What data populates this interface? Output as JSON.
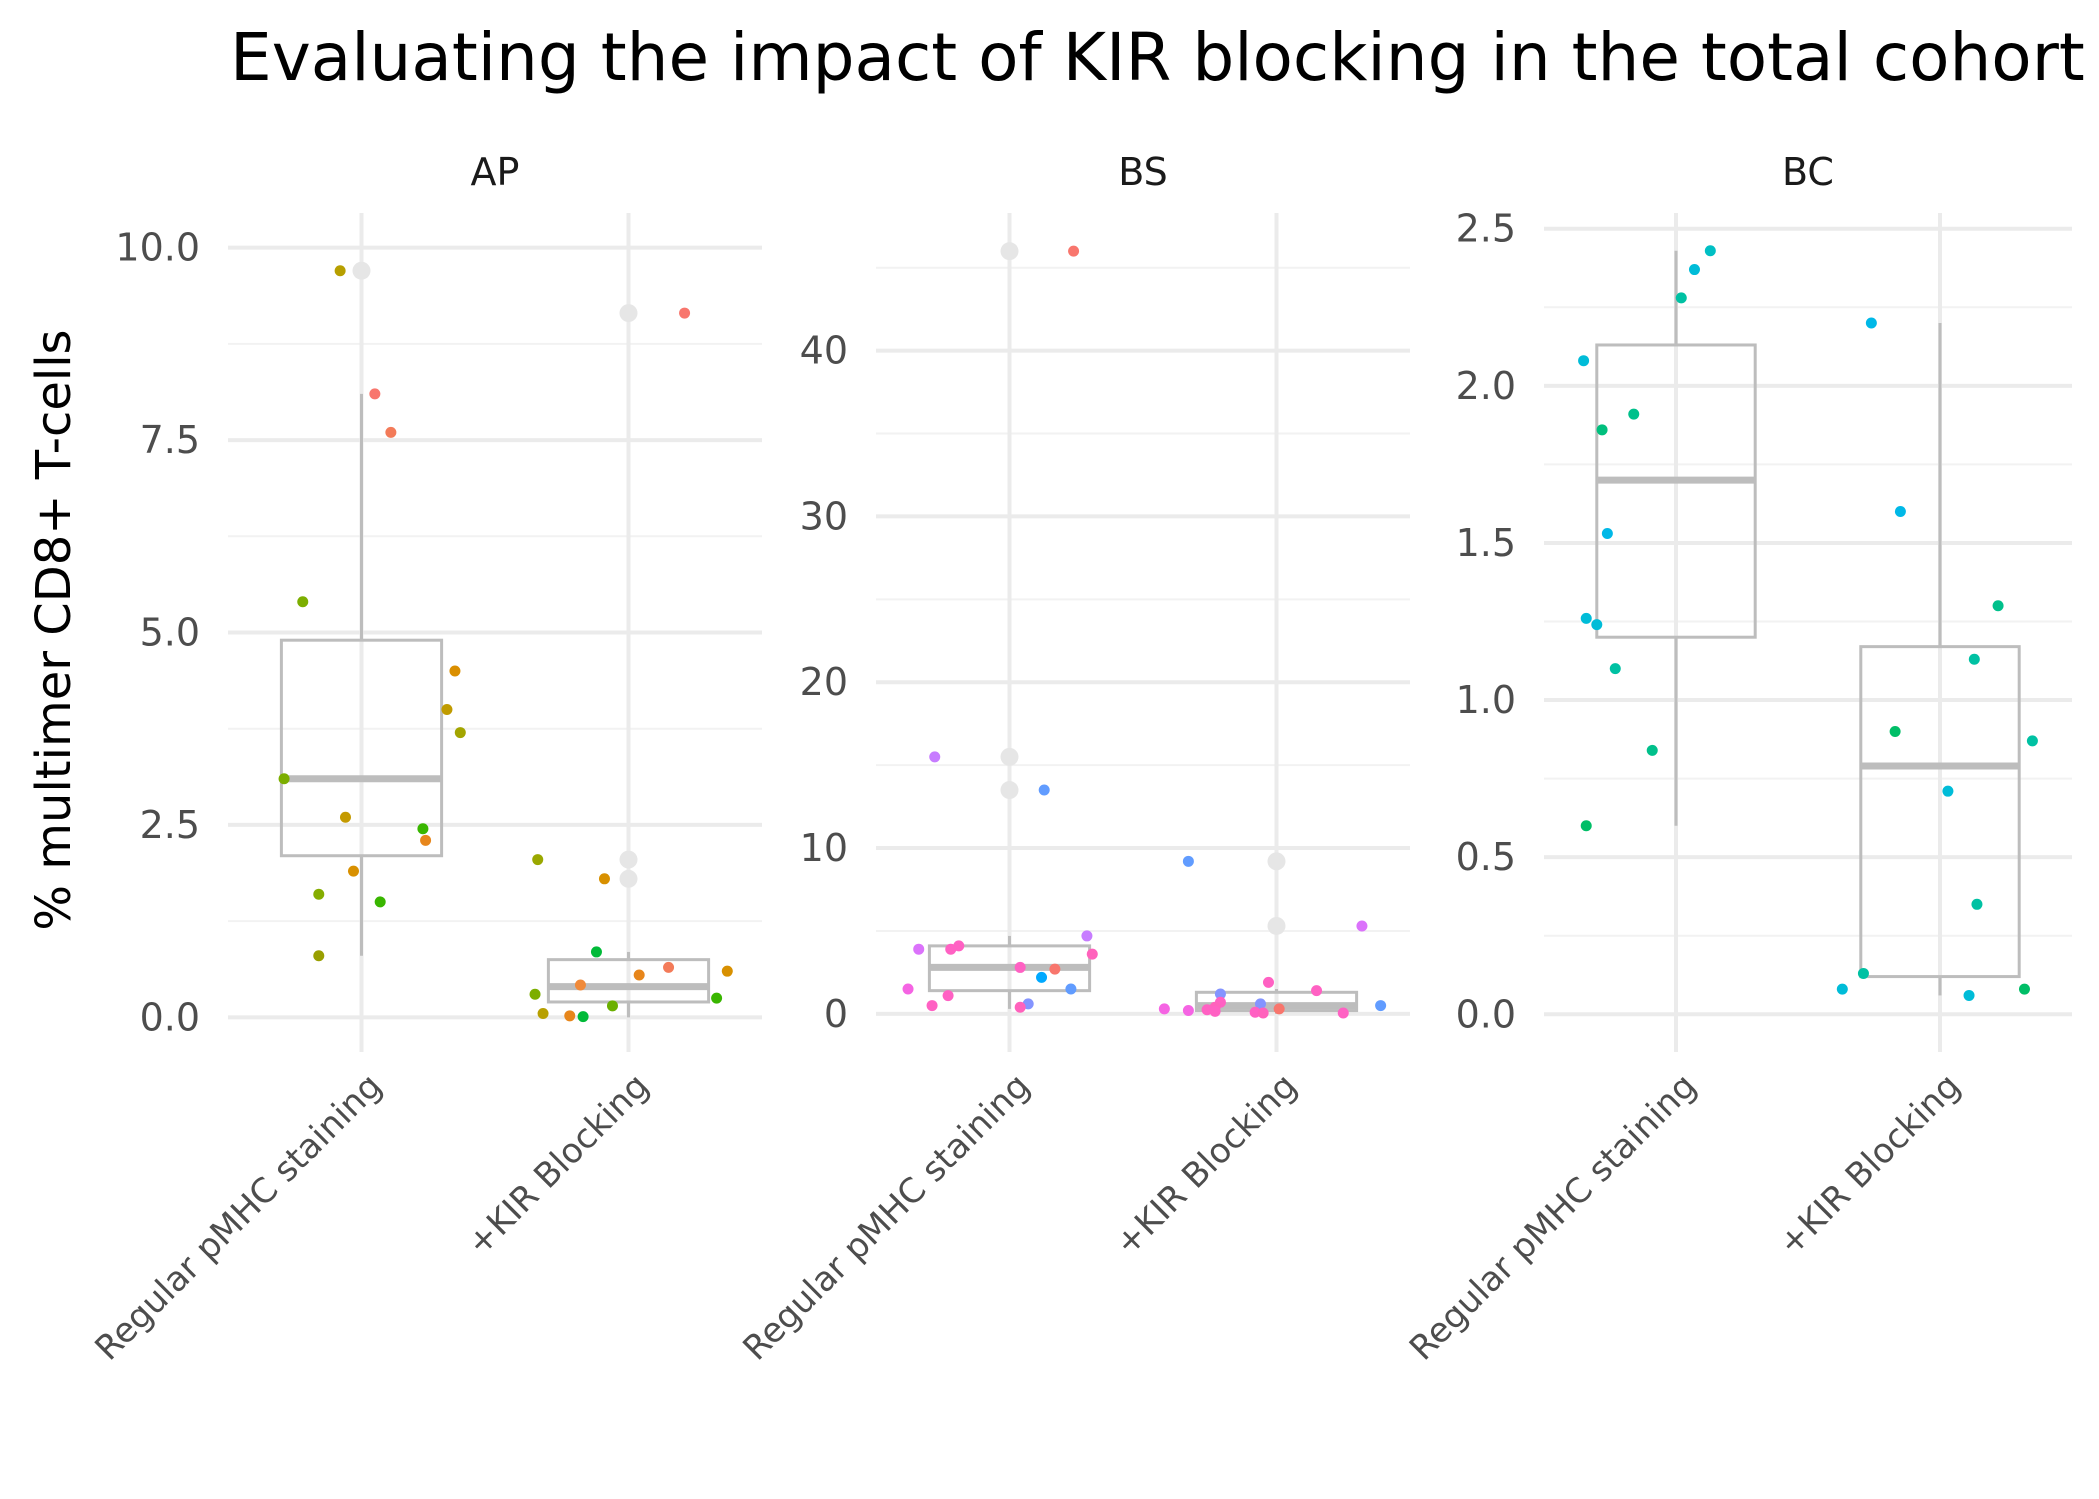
{
  "chart_data": {
    "type": "box",
    "title": "Evaluating the impact of KIR blocking in the total cohort",
    "ylabel": "% multimer CD8+ T-cells",
    "xlabel": "",
    "categories": [
      "Regular pMHC staining",
      "+KIR Blocking"
    ],
    "legend": "none",
    "grid": true,
    "panels": [
      {
        "name": "AP",
        "ylim": [
          -0.45,
          10.45
        ],
        "yticks": [
          0,
          2.5,
          5,
          7.5,
          10
        ],
        "tick_labels": [
          "0.0",
          "2.5",
          "5.0",
          "7.5",
          "10.0"
        ],
        "boxes": [
          {
            "q1": 2.1,
            "median": 3.1,
            "q3": 4.9,
            "whisker_low": 0.8,
            "whisker_high": 8.1,
            "outliers": [
              9.7
            ]
          },
          {
            "q1": 0.2,
            "median": 0.4,
            "q3": 0.75,
            "whisker_low": 0.0,
            "whisker_high": 0.85,
            "outliers": [
              9.15,
              2.05,
              1.8
            ]
          }
        ],
        "points": [
          {
            "group": 0,
            "offset": -0.08,
            "y": 9.7,
            "color": "#b79f00"
          },
          {
            "group": 0,
            "offset": 0.05,
            "y": 8.1,
            "color": "#f8766d"
          },
          {
            "group": 0,
            "offset": 0.11,
            "y": 7.6,
            "color": "#f37b59"
          },
          {
            "group": 0,
            "offset": -0.22,
            "y": 5.4,
            "color": "#7cae00"
          },
          {
            "group": 0,
            "offset": 0.35,
            "y": 4.5,
            "color": "#da8f00"
          },
          {
            "group": 0,
            "offset": 0.32,
            "y": 4.0,
            "color": "#c09b00"
          },
          {
            "group": 0,
            "offset": 0.37,
            "y": 3.7,
            "color": "#a3a500"
          },
          {
            "group": 0,
            "offset": -0.29,
            "y": 3.1,
            "color": "#7cae00"
          },
          {
            "group": 0,
            "offset": -0.06,
            "y": 2.6,
            "color": "#c49a00"
          },
          {
            "group": 0,
            "offset": 0.23,
            "y": 2.45,
            "color": "#39b600"
          },
          {
            "group": 0,
            "offset": 0.24,
            "y": 2.3,
            "color": "#e7861b"
          },
          {
            "group": 0,
            "offset": -0.03,
            "y": 1.9,
            "color": "#d89000"
          },
          {
            "group": 0,
            "offset": -0.16,
            "y": 1.6,
            "color": "#85ad00"
          },
          {
            "group": 0,
            "offset": 0.07,
            "y": 1.5,
            "color": "#39b600"
          },
          {
            "group": 0,
            "offset": -0.16,
            "y": 0.8,
            "color": "#999f00"
          },
          {
            "group": 1,
            "offset": 0.21,
            "y": 9.15,
            "color": "#f8766d"
          },
          {
            "group": 1,
            "offset": -0.34,
            "y": 2.05,
            "color": "#9aa800"
          },
          {
            "group": 1,
            "offset": -0.09,
            "y": 1.8,
            "color": "#d89000"
          },
          {
            "group": 1,
            "offset": -0.12,
            "y": 0.85,
            "color": "#00ba38"
          },
          {
            "group": 1,
            "offset": 0.15,
            "y": 0.65,
            "color": "#f37b59"
          },
          {
            "group": 1,
            "offset": 0.37,
            "y": 0.6,
            "color": "#d89000"
          },
          {
            "group": 1,
            "offset": 0.04,
            "y": 0.55,
            "color": "#e7861b"
          },
          {
            "group": 1,
            "offset": -0.18,
            "y": 0.42,
            "color": "#f08a3a"
          },
          {
            "group": 1,
            "offset": -0.35,
            "y": 0.3,
            "color": "#7cae00"
          },
          {
            "group": 1,
            "offset": 0.33,
            "y": 0.25,
            "color": "#39b600"
          },
          {
            "group": 1,
            "offset": -0.06,
            "y": 0.15,
            "color": "#6aaf00"
          },
          {
            "group": 1,
            "offset": -0.32,
            "y": 0.05,
            "color": "#b79f00"
          },
          {
            "group": 1,
            "offset": -0.22,
            "y": 0.02,
            "color": "#e7861b"
          },
          {
            "group": 1,
            "offset": -0.17,
            "y": 0.01,
            "color": "#00ba38"
          }
        ]
      },
      {
        "name": "BS",
        "ylim": [
          -2.3,
          48.3
        ],
        "yticks": [
          0,
          10,
          20,
          30,
          40
        ],
        "tick_labels": [
          "0",
          "10",
          "20",
          "30",
          "40"
        ],
        "boxes": [
          {
            "q1": 1.4,
            "median": 2.8,
            "q3": 4.1,
            "whisker_low": 0.3,
            "whisker_high": 4.7,
            "outliers": [
              46,
              15.5,
              13.5
            ]
          },
          {
            "q1": 0.2,
            "median": 0.5,
            "q3": 1.3,
            "whisker_low": 0.0,
            "whisker_high": 1.5,
            "outliers": [
              9.2,
              5.3
            ]
          }
        ],
        "points": [
          {
            "group": 0,
            "offset": 0.24,
            "y": 46,
            "color": "#f8766d"
          },
          {
            "group": 0,
            "offset": -0.28,
            "y": 15.5,
            "color": "#c77cff"
          },
          {
            "group": 0,
            "offset": 0.13,
            "y": 13.5,
            "color": "#619cff"
          },
          {
            "group": 0,
            "offset": 0.29,
            "y": 4.7,
            "color": "#c77cff"
          },
          {
            "group": 0,
            "offset": -0.19,
            "y": 4.1,
            "color": "#ff61c3"
          },
          {
            "group": 0,
            "offset": -0.22,
            "y": 3.9,
            "color": "#ff61c3"
          },
          {
            "group": 0,
            "offset": -0.34,
            "y": 3.9,
            "color": "#db72fb"
          },
          {
            "group": 0,
            "offset": 0.31,
            "y": 3.6,
            "color": "#ff62bc"
          },
          {
            "group": 0,
            "offset": 0.04,
            "y": 2.8,
            "color": "#ff61c3"
          },
          {
            "group": 0,
            "offset": 0.17,
            "y": 2.7,
            "color": "#f8766d"
          },
          {
            "group": 0,
            "offset": 0.12,
            "y": 2.2,
            "color": "#00a9ff"
          },
          {
            "group": 0,
            "offset": -0.38,
            "y": 1.5,
            "color": "#f564e3"
          },
          {
            "group": 0,
            "offset": 0.23,
            "y": 1.5,
            "color": "#619cff"
          },
          {
            "group": 0,
            "offset": -0.23,
            "y": 1.1,
            "color": "#ff61c3"
          },
          {
            "group": 0,
            "offset": -0.29,
            "y": 0.5,
            "color": "#ff61c3"
          },
          {
            "group": 0,
            "offset": 0.07,
            "y": 0.6,
            "color": "#8494ff"
          },
          {
            "group": 0,
            "offset": 0.04,
            "y": 0.4,
            "color": "#ff62bc"
          },
          {
            "group": 1,
            "offset": -0.33,
            "y": 9.2,
            "color": "#619cff"
          },
          {
            "group": 1,
            "offset": 0.32,
            "y": 5.3,
            "color": "#db72fb"
          },
          {
            "group": 1,
            "offset": -0.03,
            "y": 1.9,
            "color": "#ff61c3"
          },
          {
            "group": 1,
            "offset": 0.15,
            "y": 1.4,
            "color": "#ff61c3"
          },
          {
            "group": 1,
            "offset": -0.21,
            "y": 1.2,
            "color": "#8494ff"
          },
          {
            "group": 1,
            "offset": -0.21,
            "y": 0.7,
            "color": "#ff61c3"
          },
          {
            "group": 1,
            "offset": -0.06,
            "y": 0.6,
            "color": "#8494ff"
          },
          {
            "group": 1,
            "offset": 0.39,
            "y": 0.5,
            "color": "#619cff"
          },
          {
            "group": 1,
            "offset": -0.23,
            "y": 0.4,
            "color": "#ff62bc"
          },
          {
            "group": 1,
            "offset": -0.33,
            "y": 0.2,
            "color": "#f564e3"
          },
          {
            "group": 1,
            "offset": -0.26,
            "y": 0.25,
            "color": "#ff61c3"
          },
          {
            "group": 1,
            "offset": -0.23,
            "y": 0.15,
            "color": "#ff61c3"
          },
          {
            "group": 1,
            "offset": -0.42,
            "y": 0.3,
            "color": "#f564e3"
          },
          {
            "group": 1,
            "offset": -0.08,
            "y": 0.1,
            "color": "#ff61c3"
          },
          {
            "group": 1,
            "offset": -0.05,
            "y": 0.05,
            "color": "#ff62bc"
          },
          {
            "group": 1,
            "offset": 0.01,
            "y": 0.3,
            "color": "#f8766d"
          },
          {
            "group": 1,
            "offset": 0.25,
            "y": 0.05,
            "color": "#ff61c3"
          }
        ]
      },
      {
        "name": "BC",
        "ylim": [
          -0.12,
          2.55
        ],
        "yticks": [
          0,
          0.5,
          1,
          1.5,
          2,
          2.5
        ],
        "tick_labels": [
          "0.0",
          "0.5",
          "1.0",
          "1.5",
          "2.0",
          "2.5"
        ],
        "boxes": [
          {
            "q1": 1.2,
            "median": 1.7,
            "q3": 2.13,
            "whisker_low": 0.6,
            "whisker_high": 2.43,
            "outliers": []
          },
          {
            "q1": 0.12,
            "median": 0.79,
            "q3": 1.17,
            "whisker_low": 0.06,
            "whisker_high": 2.2,
            "outliers": []
          }
        ],
        "points": [
          {
            "group": 0,
            "offset": 0.13,
            "y": 2.43,
            "color": "#00bfc4"
          },
          {
            "group": 0,
            "offset": 0.07,
            "y": 2.37,
            "color": "#00bcd8"
          },
          {
            "group": 0,
            "offset": 0.02,
            "y": 2.28,
            "color": "#00c1a3"
          },
          {
            "group": 0,
            "offset": -0.35,
            "y": 2.08,
            "color": "#00bcd8"
          },
          {
            "group": 0,
            "offset": -0.16,
            "y": 1.91,
            "color": "#00c08b"
          },
          {
            "group": 0,
            "offset": -0.28,
            "y": 1.86,
            "color": "#00bf7d"
          },
          {
            "group": 0,
            "offset": -0.26,
            "y": 1.53,
            "color": "#00b8e7"
          },
          {
            "group": 0,
            "offset": -0.34,
            "y": 1.26,
            "color": "#00bcd8"
          },
          {
            "group": 0,
            "offset": -0.3,
            "y": 1.24,
            "color": "#00bcd8"
          },
          {
            "group": 0,
            "offset": -0.23,
            "y": 1.1,
            "color": "#00c1a3"
          },
          {
            "group": 0,
            "offset": -0.09,
            "y": 0.84,
            "color": "#00c08b"
          },
          {
            "group": 0,
            "offset": -0.34,
            "y": 0.6,
            "color": "#00be67"
          },
          {
            "group": 1,
            "offset": -0.26,
            "y": 2.2,
            "color": "#00b8e7"
          },
          {
            "group": 1,
            "offset": -0.15,
            "y": 1.6,
            "color": "#00b8e7"
          },
          {
            "group": 1,
            "offset": 0.22,
            "y": 1.3,
            "color": "#00c08b"
          },
          {
            "group": 1,
            "offset": 0.13,
            "y": 1.13,
            "color": "#00c1a3"
          },
          {
            "group": 1,
            "offset": -0.17,
            "y": 0.9,
            "color": "#00be67"
          },
          {
            "group": 1,
            "offset": 0.35,
            "y": 0.87,
            "color": "#00c1a3"
          },
          {
            "group": 1,
            "offset": 0.03,
            "y": 0.71,
            "color": "#00bcd8"
          },
          {
            "group": 1,
            "offset": 0.14,
            "y": 0.35,
            "color": "#00c1a3"
          },
          {
            "group": 1,
            "offset": -0.29,
            "y": 0.13,
            "color": "#00c1a3"
          },
          {
            "group": 1,
            "offset": -0.37,
            "y": 0.08,
            "color": "#00bcd8"
          },
          {
            "group": 1,
            "offset": 0.32,
            "y": 0.08,
            "color": "#00be67"
          },
          {
            "group": 1,
            "offset": 0.11,
            "y": 0.06,
            "color": "#00bcd8"
          }
        ]
      }
    ],
    "colors": {
      "box": "#bdbdbd",
      "grid_major": "#ebebeb",
      "grid_minor": "#f2f2f2",
      "outlier": "#e6e6e6"
    }
  }
}
